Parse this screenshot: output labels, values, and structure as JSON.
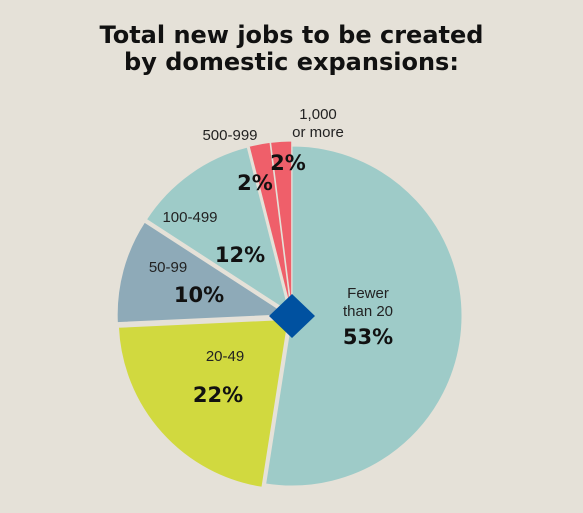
{
  "title": {
    "line1": "Total new jobs to be created",
    "line2": "by domestic expansions:"
  },
  "chart_data": {
    "type": "pie",
    "title": "Total new jobs to be created by domestic expansions:",
    "slices": [
      {
        "label": "Fewer than 20",
        "label_lines": [
          "Fewer",
          "than 20"
        ],
        "value": 53,
        "display": "53%",
        "color": "#9ecbc8"
      },
      {
        "label": "20-49",
        "label_lines": [
          "20-49"
        ],
        "value": 22,
        "display": "22%",
        "color": "#d1d93f"
      },
      {
        "label": "50-99",
        "label_lines": [
          "50-99"
        ],
        "value": 10,
        "display": "10%",
        "color": "#8eaab8"
      },
      {
        "label": "100-499",
        "label_lines": [
          "100-499"
        ],
        "value": 12,
        "display": "12%",
        "color": "#9ecbc8"
      },
      {
        "label": "500-999",
        "label_lines": [
          "500-999"
        ],
        "value": 2,
        "display": "2%",
        "color": "#ef5f6a"
      },
      {
        "label": "1,000 or more",
        "label_lines": [
          "1,000",
          "or more"
        ],
        "value": 2,
        "display": "2%",
        "color": "#ef5f6a"
      }
    ],
    "center_marker_color": "#0051a0"
  }
}
